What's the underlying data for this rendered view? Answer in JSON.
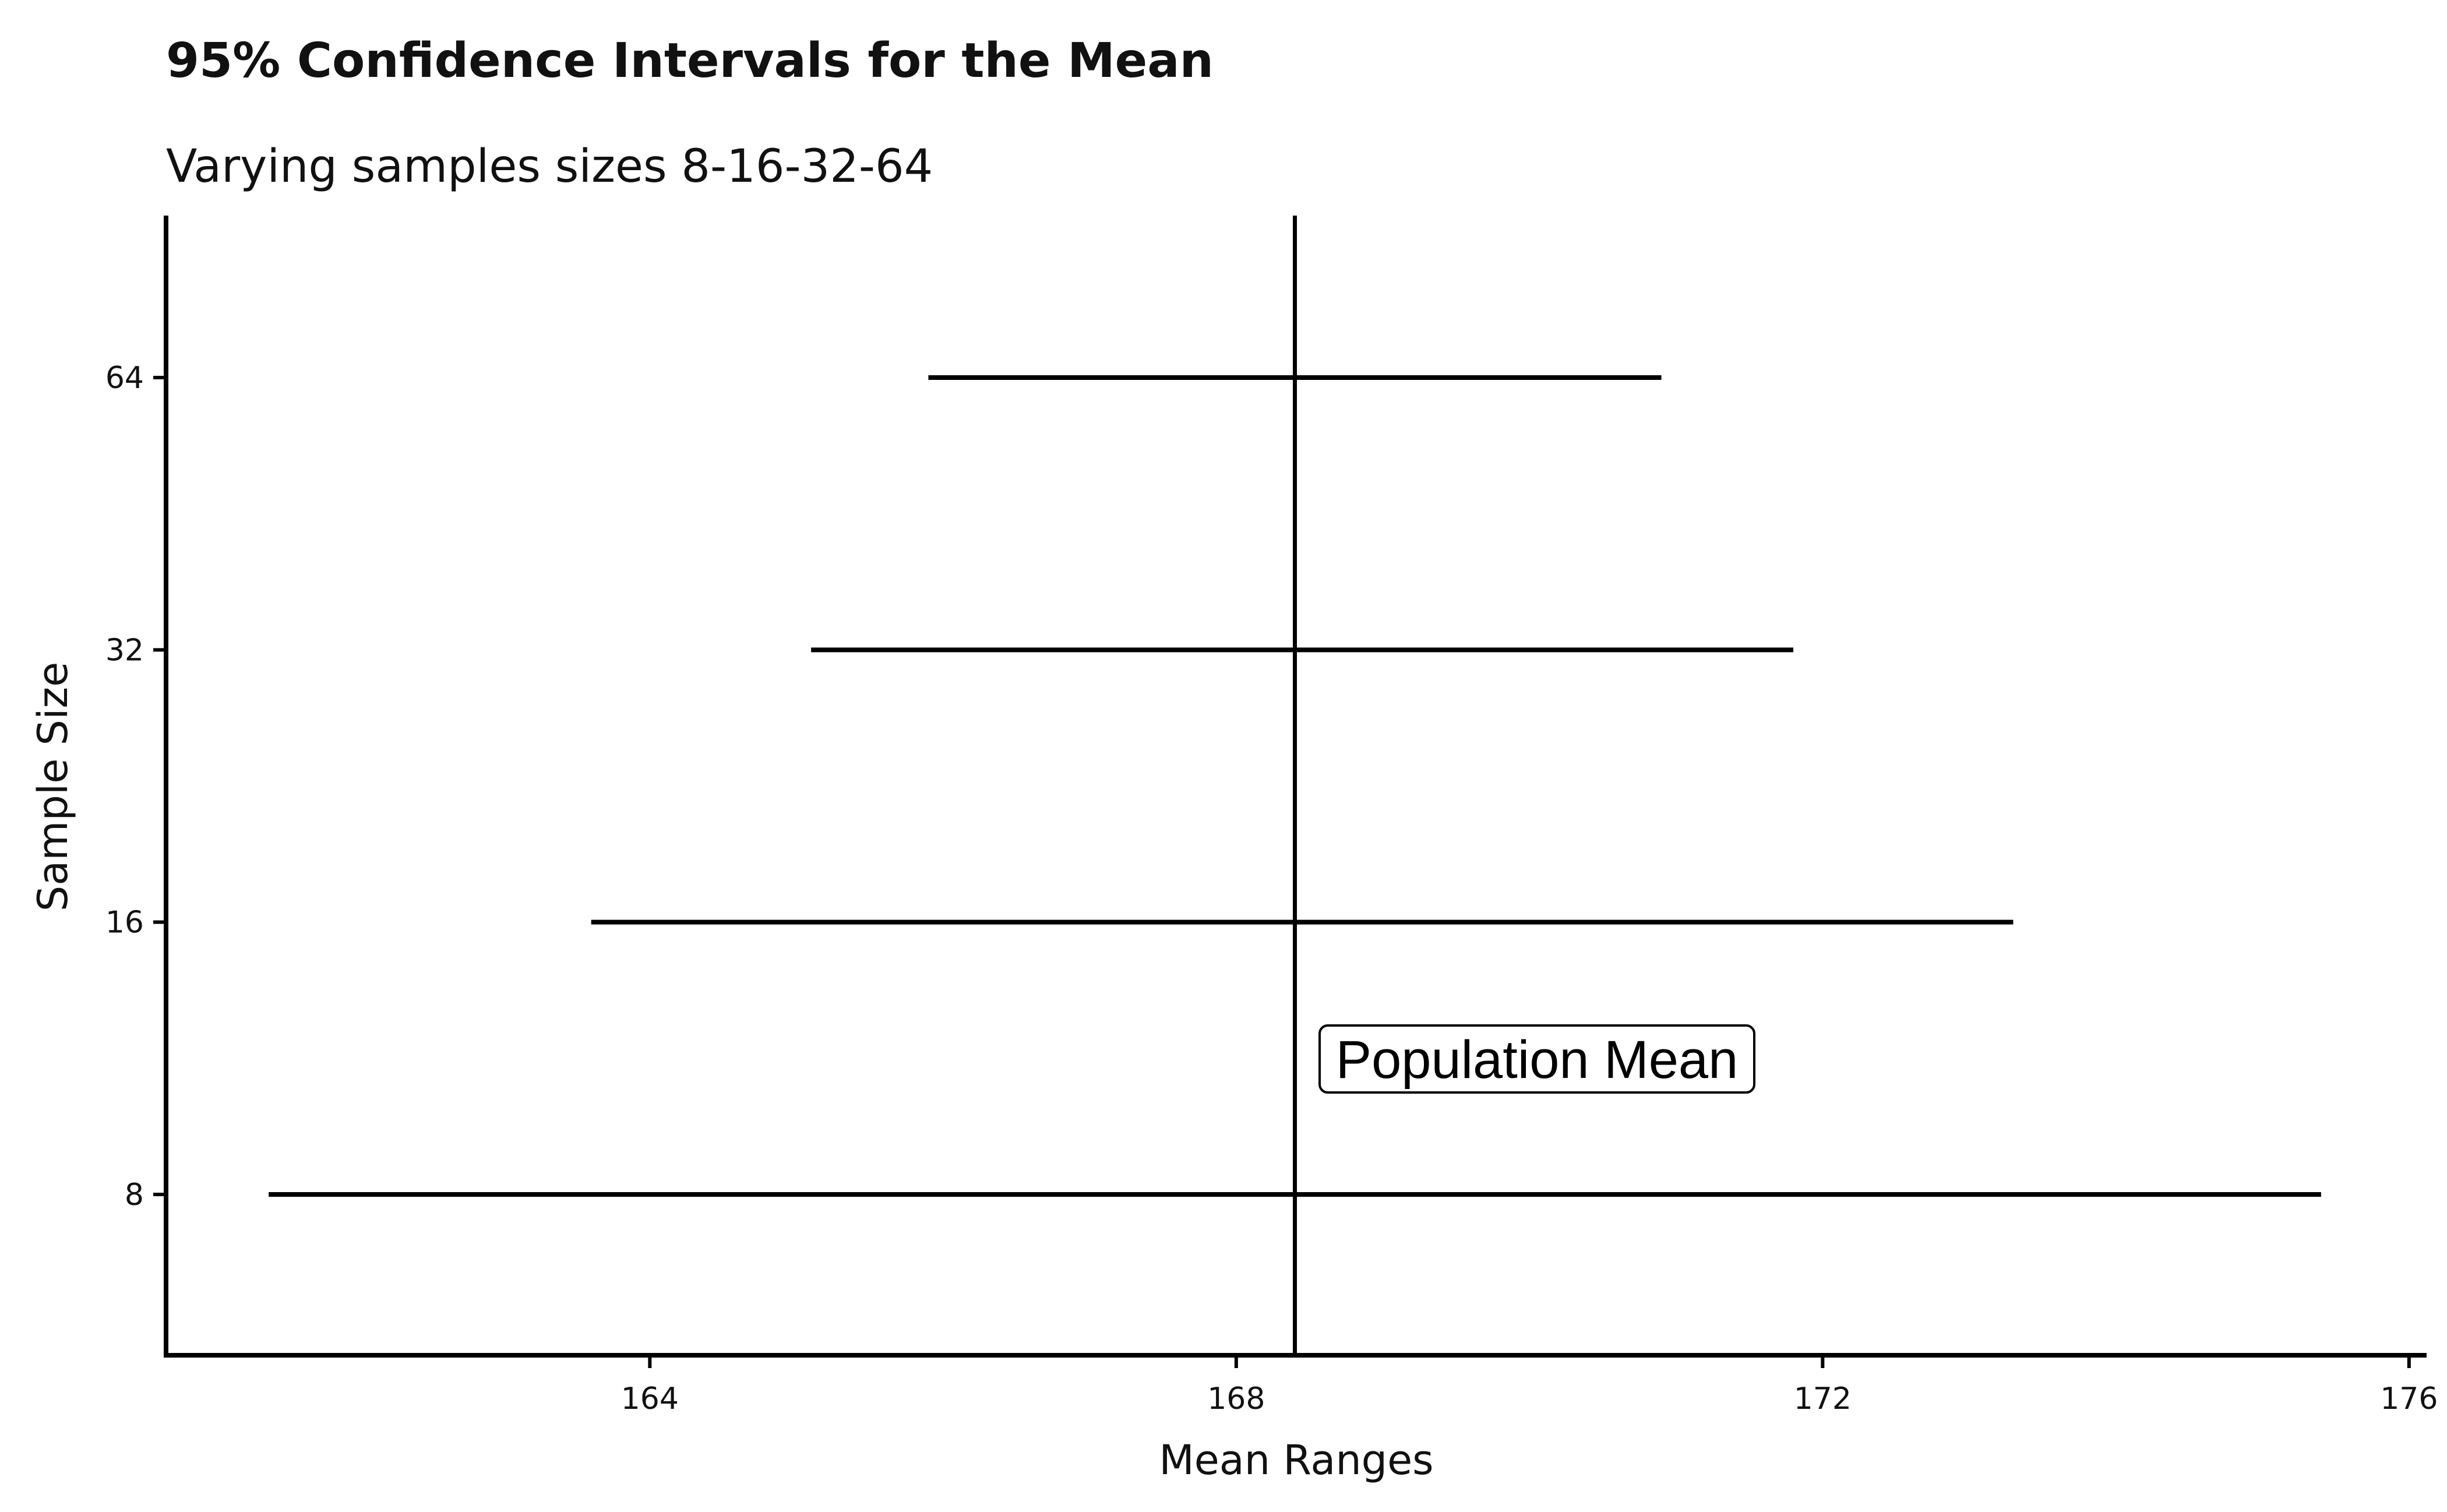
{
  "chart_data": {
    "type": "errorbar",
    "title": "95% Confidence Intervals for the Mean",
    "subtitle": "Varying samples sizes 8-16-32-64",
    "xlabel": "Mean Ranges",
    "ylabel": "Sample Size",
    "x_ticks": [
      164,
      168,
      172,
      176
    ],
    "y_categories": [
      "8",
      "16",
      "32",
      "64"
    ],
    "xlim": [
      160.7,
      176.1
    ],
    "intervals": [
      {
        "sample_size": "8",
        "lower": 161.4,
        "upper": 175.4
      },
      {
        "sample_size": "16",
        "lower": 163.6,
        "upper": 173.3
      },
      {
        "sample_size": "32",
        "lower": 165.1,
        "upper": 171.8
      },
      {
        "sample_size": "64",
        "lower": 165.9,
        "upper": 170.9
      }
    ],
    "reference_line": {
      "x": 168.4,
      "label": "Population Mean"
    },
    "grid": false,
    "legend": "none"
  }
}
